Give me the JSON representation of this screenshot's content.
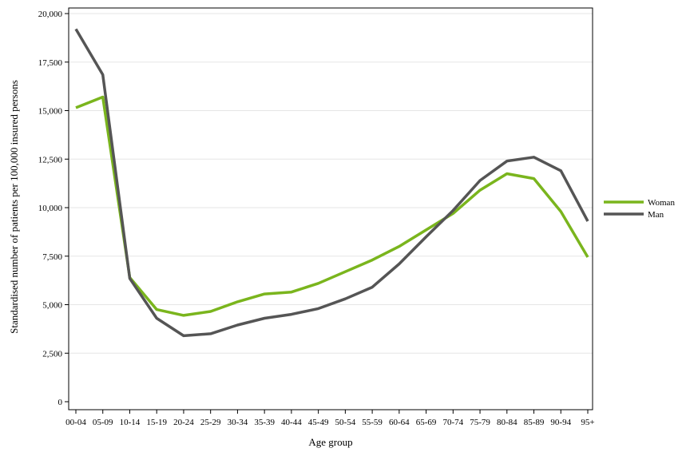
{
  "chart_data": {
    "type": "line",
    "xlabel": "Age group",
    "ylabel": "Standardised number of patients per 100,000 insured persons",
    "categories": [
      "00-04",
      "05-09",
      "10-14",
      "15-19",
      "20-24",
      "25-29",
      "30-34",
      "35-39",
      "40-44",
      "45-49",
      "50-54",
      "55-59",
      "60-64",
      "65-69",
      "70-74",
      "75-79",
      "80-84",
      "85-89",
      "90-94",
      "95+"
    ],
    "ylim": [
      0,
      20000
    ],
    "yticks": [
      0,
      2500,
      5000,
      7500,
      10000,
      12500,
      15000,
      17500,
      20000
    ],
    "ytick_labels": [
      "0",
      "2,500",
      "5,000",
      "7,500",
      "10,000",
      "12,500",
      "15,000",
      "17,500",
      "20,000"
    ],
    "grid": "horizontal",
    "legend_position": "right",
    "series": [
      {
        "name": "Woman",
        "color": "#7ab51d",
        "values": [
          15150,
          15700,
          6400,
          4750,
          4450,
          4650,
          5150,
          5550,
          5650,
          6100,
          6700,
          7300,
          8000,
          8850,
          9700,
          10900,
          11750,
          11500,
          9800,
          7450
        ]
      },
      {
        "name": "Man",
        "color": "#555555",
        "values": [
          19200,
          16850,
          6350,
          4300,
          3400,
          3500,
          3950,
          4300,
          4500,
          4800,
          5300,
          5900,
          7100,
          8500,
          9850,
          11400,
          12400,
          12600,
          11900,
          9300
        ]
      }
    ]
  }
}
